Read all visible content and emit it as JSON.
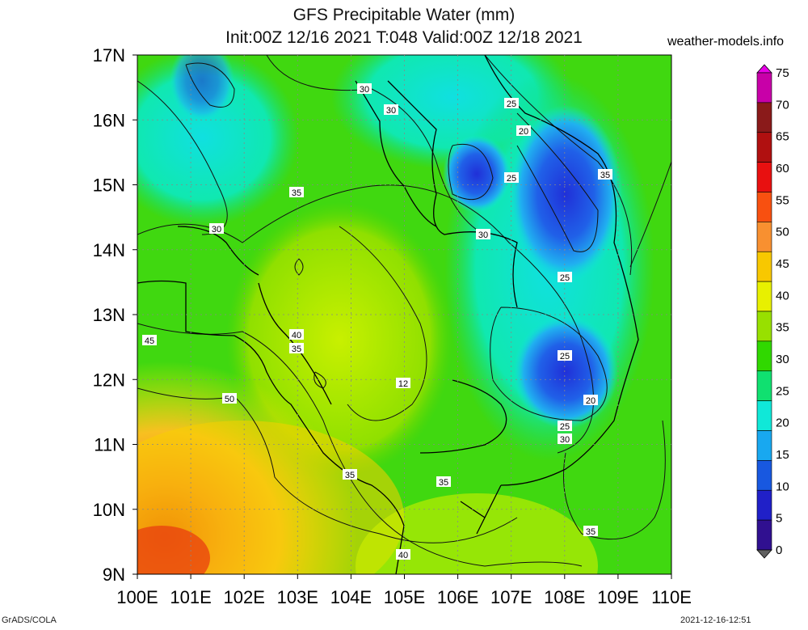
{
  "header": {
    "title": "GFS Precipitable Water (mm)",
    "subtitle": "Init:00Z 12/16 2021 T:048 Valid:00Z 12/18 2021",
    "site": "weather-models.info"
  },
  "footer": {
    "left": "GrADS/COLA",
    "right": "2021-12-16-12:51"
  },
  "axes": {
    "lat_labels": [
      "17N",
      "16N",
      "15N",
      "14N",
      "13N",
      "12N",
      "11N",
      "10N",
      "9N"
    ],
    "lon_labels": [
      "100E",
      "101E",
      "102E",
      "103E",
      "104E",
      "105E",
      "106E",
      "107E",
      "108E",
      "109E",
      "110E"
    ]
  },
  "colorbar": {
    "labels": [
      "75",
      "70",
      "65",
      "60",
      "55",
      "50",
      "45",
      "40",
      "35",
      "30",
      "25",
      "20",
      "15",
      "10",
      "5",
      "0"
    ],
    "colors": [
      "#e800e8",
      "#c800a8",
      "#8a1a1a",
      "#b01010",
      "#e81010",
      "#f85010",
      "#f89030",
      "#f8c800",
      "#e8f000",
      "#98e000",
      "#30d800",
      "#10e070",
      "#10e8d8",
      "#18a8f0",
      "#1858e0",
      "#2020c8",
      "#301090",
      "#606060"
    ]
  },
  "contour_labels": [
    "30",
    "30",
    "25",
    "20",
    "35",
    "25",
    "35",
    "30",
    "30",
    "25",
    "45",
    "40",
    "35",
    "25",
    "12",
    "50",
    "20",
    "25",
    "30",
    "35",
    "35",
    "35",
    "40"
  ]
}
